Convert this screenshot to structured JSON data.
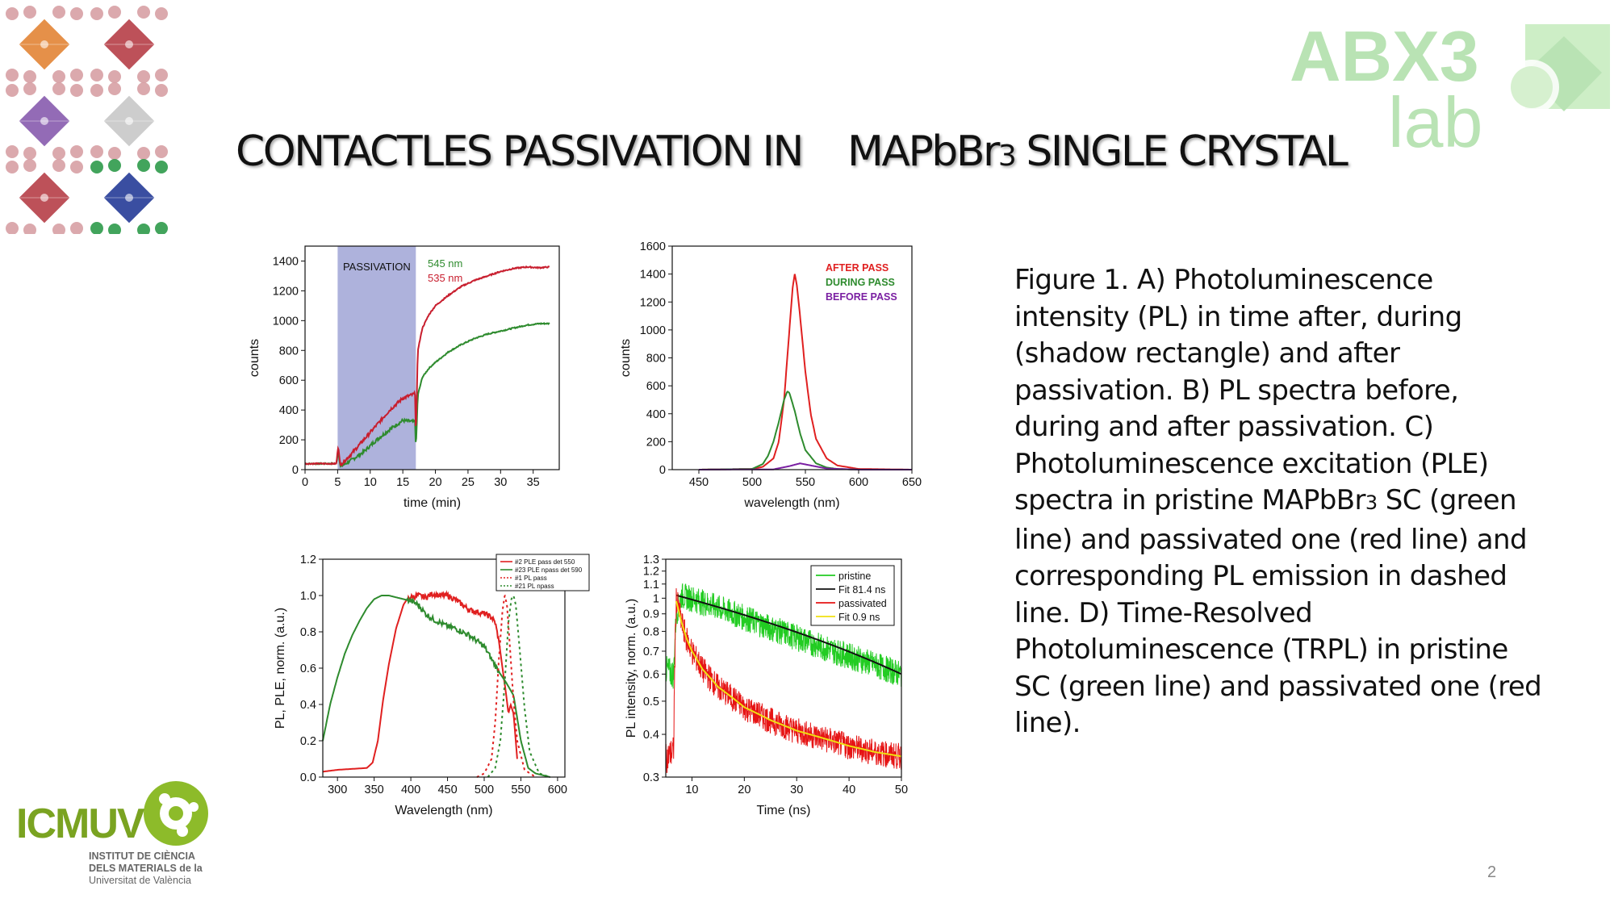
{
  "slide": {
    "title_a": "CONTACTLES PASSIVATION IN",
    "title_b": "MAPbBr",
    "title_sub": "3",
    "title_c": "SINGLE CRYSTAL",
    "page_number": "2",
    "caption_1": "Figure 1. A) Photoluminescence intensity (PL) in time after, during (shadow rectangle) and after passivation. B) PL spectra before, during and after passivation. C) Photoluminescence excitation (PLE) spectra in pristine MAPbBr",
    "caption_sub": "3",
    "caption_2": " SC (green line) and passivated one (red line) and  corresponding PL emission in dashed line. D) Time-Resolved Photoluminescence (TRPL) in pristine SC (green line) and passivated one (red line).",
    "logo_abx3_top": "ABX3",
    "logo_abx3_bottom": "lab",
    "logo_icmuv": "ICMUV",
    "logo_icmuv_line1": "INSTITUT DE CIÈNCIA",
    "logo_icmuv_line2": "DELS MATERIALS de la",
    "logo_icmuv_line3": "Universitat de València"
  },
  "colors": {
    "green": "#2e8b2e",
    "red": "#e02020",
    "dark_red": "#c81e2e",
    "purple": "#7a1fa2",
    "shade": "#aeb2dc",
    "abx3_green": "#b9e3b4"
  },
  "chart_data": [
    {
      "id": "A",
      "type": "line",
      "xlabel": "time (min)",
      "ylabel": "counts",
      "xlim": [
        0,
        39
      ],
      "ylim": [
        0,
        1500
      ],
      "xticks": [
        0,
        5,
        10,
        15,
        20,
        25,
        30,
        35
      ],
      "yticks": [
        0,
        200,
        400,
        600,
        800,
        1000,
        1200,
        1400
      ],
      "shaded_region": {
        "x": [
          5,
          17
        ],
        "label": "PASSIVATION"
      },
      "series": [
        {
          "name": "545 nm",
          "color": "#2e8b2e",
          "x": [
            0,
            4.8,
            5.1,
            5.4,
            7,
            9,
            11,
            13,
            15,
            16.9,
            17.0,
            17.3,
            18,
            19,
            20,
            22,
            24,
            26,
            28,
            30,
            32,
            34,
            36,
            37.5
          ],
          "y": [
            40,
            40,
            130,
            20,
            60,
            120,
            200,
            270,
            330,
            320,
            130,
            500,
            620,
            680,
            720,
            790,
            840,
            880,
            910,
            930,
            950,
            970,
            980,
            980
          ]
        },
        {
          "name": "535 nm",
          "color": "#c81e2e",
          "x": [
            0,
            4.8,
            5.1,
            5.4,
            7,
            9,
            11,
            13,
            15,
            16.9,
            17.0,
            17.3,
            18,
            19,
            20,
            22,
            24,
            26,
            28,
            30,
            32,
            34,
            36,
            37.5
          ],
          "y": [
            40,
            40,
            160,
            30,
            100,
            200,
            300,
            400,
            480,
            510,
            200,
            800,
            950,
            1040,
            1100,
            1170,
            1230,
            1270,
            1300,
            1330,
            1350,
            1360,
            1355,
            1360
          ]
        }
      ]
    },
    {
      "id": "B",
      "type": "line",
      "xlabel": "wavelength (nm)",
      "ylabel": "counts",
      "xlim": [
        425,
        650
      ],
      "ylim": [
        0,
        1600
      ],
      "xticks": [
        450,
        500,
        550,
        600,
        650
      ],
      "yticks": [
        0,
        200,
        400,
        600,
        800,
        1000,
        1200,
        1400,
        1600
      ],
      "series": [
        {
          "name": "AFTER PASS",
          "color": "#e02020",
          "x": [
            450,
            500,
            510,
            520,
            525,
            530,
            535,
            538,
            540,
            542,
            545,
            550,
            555,
            560,
            570,
            580,
            600,
            650
          ],
          "y": [
            0,
            5,
            20,
            80,
            200,
            500,
            1000,
            1300,
            1400,
            1320,
            1100,
            700,
            400,
            220,
            80,
            30,
            5,
            0
          ]
        },
        {
          "name": "DURING PASS",
          "color": "#2e8b2e",
          "x": [
            450,
            500,
            510,
            515,
            520,
            525,
            530,
            533,
            535,
            540,
            545,
            550,
            560,
            570,
            580,
            600,
            650
          ],
          "y": [
            0,
            5,
            40,
            100,
            200,
            340,
            500,
            560,
            550,
            420,
            260,
            140,
            45,
            15,
            5,
            0,
            0
          ]
        },
        {
          "name": "BEFORE PASS",
          "color": "#7a1fa2",
          "x": [
            450,
            520,
            535,
            545,
            555,
            570,
            600,
            650
          ],
          "y": [
            0,
            2,
            25,
            45,
            30,
            8,
            0,
            0
          ]
        }
      ]
    },
    {
      "id": "C",
      "type": "line",
      "xlabel": "Wavelength (nm)",
      "ylabel": "PL, PLE, norm. (a.u.)",
      "xlim": [
        280,
        610
      ],
      "ylim": [
        0,
        1.2
      ],
      "xticks": [
        300,
        350,
        400,
        450,
        500,
        550,
        600
      ],
      "yticks": [
        "0.0",
        "0.2",
        "0.4",
        "0.6",
        "0.8",
        "1.0",
        "1.2"
      ],
      "series": [
        {
          "name": "#2 PLE pass det 550",
          "color": "#e02020",
          "dash": false,
          "x": [
            280,
            300,
            340,
            348,
            355,
            362,
            370,
            380,
            390,
            395,
            400,
            410,
            420,
            430,
            440,
            450,
            460,
            470,
            480,
            490,
            500,
            510,
            515,
            520,
            525,
            530,
            533,
            536,
            540,
            545
          ],
          "y": [
            0.03,
            0.04,
            0.05,
            0.08,
            0.2,
            0.42,
            0.62,
            0.82,
            0.95,
            0.98,
            0.99,
            1.0,
            0.99,
            1.01,
            1.0,
            1.0,
            0.98,
            0.95,
            0.92,
            0.91,
            0.9,
            0.88,
            0.85,
            0.75,
            0.6,
            0.45,
            0.35,
            0.4,
            0.35,
            0.1
          ]
        },
        {
          "name": "#23 PLE npass det 590",
          "color": "#2e8b2e",
          "dash": false,
          "x": [
            280,
            290,
            300,
            310,
            320,
            330,
            340,
            350,
            360,
            370,
            380,
            390,
            400,
            410,
            420,
            430,
            440,
            450,
            460,
            470,
            480,
            490,
            500,
            510,
            520,
            530,
            540,
            550,
            560,
            570,
            580,
            590
          ],
          "y": [
            0.2,
            0.4,
            0.55,
            0.68,
            0.78,
            0.86,
            0.93,
            0.98,
            1.0,
            1.0,
            0.99,
            0.98,
            0.97,
            0.95,
            0.9,
            0.87,
            0.85,
            0.83,
            0.82,
            0.8,
            0.78,
            0.75,
            0.72,
            0.65,
            0.58,
            0.52,
            0.45,
            0.2,
            0.05,
            0.02,
            0.01,
            0.0
          ]
        },
        {
          "name": "#1 PL pass",
          "color": "#e02020",
          "dash": true,
          "x": [
            490,
            500,
            510,
            515,
            520,
            525,
            528,
            531,
            535,
            540,
            545,
            555,
            570
          ],
          "y": [
            0.0,
            0.02,
            0.1,
            0.3,
            0.65,
            0.92,
            1.0,
            0.95,
            0.72,
            0.42,
            0.2,
            0.04,
            0.0
          ]
        },
        {
          "name": "#21 PL npass",
          "color": "#2e8b2e",
          "dash": true,
          "x": [
            505,
            515,
            522,
            528,
            533,
            537,
            540,
            543,
            548,
            555,
            562,
            575,
            590
          ],
          "y": [
            0.0,
            0.05,
            0.2,
            0.52,
            0.85,
            0.98,
            1.0,
            0.95,
            0.72,
            0.38,
            0.14,
            0.02,
            0.0
          ]
        }
      ]
    },
    {
      "id": "D",
      "type": "line",
      "log_y": true,
      "xlabel": "Time (ns)",
      "ylabel": "PL intensity, norm. (a.u.)",
      "xlim": [
        5,
        50
      ],
      "ylim": [
        0.3,
        1.3
      ],
      "xticks": [
        10,
        20,
        30,
        40,
        50
      ],
      "yticks": [
        "0.3",
        "0.4",
        "0.5",
        "0.6",
        "0.7",
        "0.8",
        "0.9",
        "1",
        "1.1",
        "1.2",
        "1.3"
      ],
      "series": [
        {
          "name": "pristine",
          "color": "#22cc22",
          "noise": true,
          "x": [
            5,
            6.5,
            7,
            8,
            10,
            15,
            20,
            25,
            30,
            35,
            40,
            45,
            50
          ],
          "y": [
            0.62,
            0.6,
            0.9,
            1.02,
            1.0,
            0.94,
            0.88,
            0.82,
            0.77,
            0.72,
            0.68,
            0.64,
            0.6
          ]
        },
        {
          "name": "Fit 81.4 ns",
          "color": "#111111",
          "x": [
            7,
            50
          ],
          "y": [
            1.02,
            0.6
          ]
        },
        {
          "name": "passivated",
          "color": "#e61414",
          "noise": true,
          "x": [
            5,
            6.5,
            7,
            8,
            9,
            10,
            12,
            15,
            20,
            25,
            30,
            35,
            40,
            45,
            50
          ],
          "y": [
            0.34,
            0.36,
            1.0,
            0.85,
            0.76,
            0.7,
            0.62,
            0.55,
            0.48,
            0.44,
            0.41,
            0.39,
            0.37,
            0.355,
            0.345
          ]
        },
        {
          "name": "Fit 0.9 ns",
          "color": "#f0e010",
          "x": [
            7,
            8,
            9,
            10,
            12,
            15,
            20,
            25,
            30,
            35,
            40,
            45,
            50
          ],
          "y": [
            0.98,
            0.85,
            0.76,
            0.7,
            0.62,
            0.55,
            0.48,
            0.44,
            0.41,
            0.39,
            0.37,
            0.355,
            0.345
          ]
        }
      ]
    }
  ]
}
